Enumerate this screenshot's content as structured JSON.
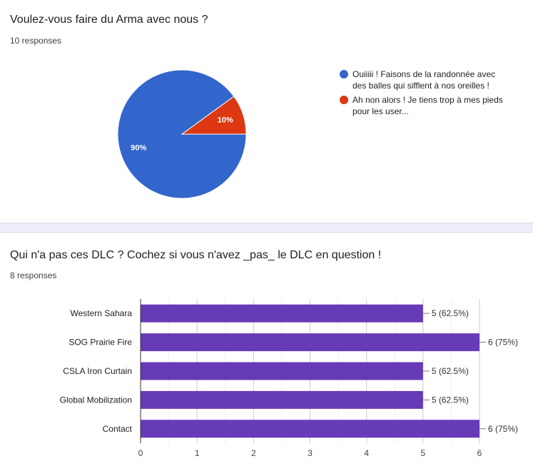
{
  "theme": {
    "separator_color": "#f0ebf8"
  },
  "chart_data": [
    {
      "type": "pie",
      "title": "Voulez-vous faire du Arma avec nous ?",
      "subtitle": "10 responses",
      "labels": [
        "Ouiiiii ! Faisons de la randonnée avec des balles qui sifflent à nos oreilles !",
        "Ah non alors ! Je tiens trop à mes pieds pour les user..."
      ],
      "values": [
        90,
        10
      ],
      "slice_labels": [
        "90%",
        "10%"
      ],
      "colors": [
        "#3366cc",
        "#dc3912"
      ],
      "legend": "right"
    },
    {
      "type": "bar",
      "orientation": "horizontal",
      "title": "Qui n'a pas ces DLC ? Cochez si vous n'avez _pas_ le DLC en question !",
      "subtitle": "8 responses",
      "categories": [
        "Western Sahara",
        "SOG Prairie Fire",
        "CSLA Iron Curtain",
        "Global Mobilization",
        "Contact"
      ],
      "values": [
        5,
        6,
        5,
        5,
        6
      ],
      "data_labels": [
        "5 (62.5%)",
        "6 (75%)",
        "5 (62.5%)",
        "5 (62.5%)",
        "6 (75%)"
      ],
      "xlim": [
        0,
        6
      ],
      "xticks": [
        "0",
        "1",
        "2",
        "3",
        "4",
        "5",
        "6"
      ],
      "grid": true,
      "legend": "none",
      "color": "#673ab7"
    }
  ]
}
